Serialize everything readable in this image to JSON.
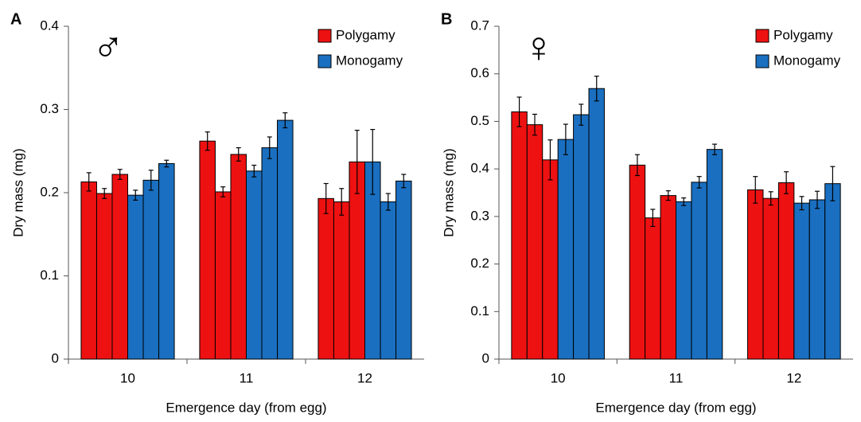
{
  "chart_data": [
    {
      "type": "bar",
      "panel_label": "A",
      "annotation": "♂",
      "y_label": "Dry mass (mg)",
      "x_label": "Emergence day (from egg)",
      "categories": [
        "10",
        "11",
        "12"
      ],
      "series": [
        {
          "name": "Polygamy",
          "color": "#ee1111",
          "values": [
            [
              0.213,
              0.199,
              0.222
            ],
            [
              0.262,
              0.201,
              0.246
            ],
            [
              0.193,
              0.189,
              0.237
            ]
          ],
          "errors": [
            [
              0.011,
              0.006,
              0.006
            ],
            [
              0.011,
              0.006,
              0.008
            ],
            [
              0.018,
              0.016,
              0.038
            ]
          ]
        },
        {
          "name": "Monogamy",
          "color": "#1a6fc0",
          "values": [
            [
              0.197,
              0.215,
              0.235
            ],
            [
              0.226,
              0.254,
              0.287
            ],
            [
              0.237,
              0.189,
              0.214
            ]
          ],
          "errors": [
            [
              0.006,
              0.012,
              0.004
            ],
            [
              0.007,
              0.013,
              0.009
            ],
            [
              0.039,
              0.01,
              0.008
            ]
          ]
        }
      ],
      "ylim": [
        0,
        0.4
      ],
      "yticks": [
        0,
        0.1,
        0.2,
        0.3,
        0.4
      ],
      "legend": "top-right"
    },
    {
      "type": "bar",
      "panel_label": "B",
      "annotation": "♀",
      "y_label": "Dry mass (mg)",
      "x_label": "Emergence day (from egg)",
      "categories": [
        "10",
        "11",
        "12"
      ],
      "series": [
        {
          "name": "Polygamy",
          "color": "#ee1111",
          "values": [
            [
              0.52,
              0.493,
              0.419
            ],
            [
              0.408,
              0.297,
              0.344
            ],
            [
              0.356,
              0.338,
              0.371
            ]
          ],
          "errors": [
            [
              0.031,
              0.022,
              0.042
            ],
            [
              0.022,
              0.018,
              0.01
            ],
            [
              0.028,
              0.014,
              0.023
            ]
          ]
        },
        {
          "name": "Monogamy",
          "color": "#1a6fc0",
          "values": [
            [
              0.462,
              0.514,
              0.569
            ],
            [
              0.331,
              0.372,
              0.441
            ],
            [
              0.328,
              0.335,
              0.369
            ]
          ],
          "errors": [
            [
              0.032,
              0.022,
              0.026
            ],
            [
              0.008,
              0.012,
              0.011
            ],
            [
              0.014,
              0.018,
              0.036
            ]
          ]
        }
      ],
      "ylim": [
        0,
        0.7
      ],
      "yticks": [
        0,
        0.1,
        0.2,
        0.3,
        0.4,
        0.5,
        0.6,
        0.7
      ],
      "legend": "top-right"
    }
  ]
}
